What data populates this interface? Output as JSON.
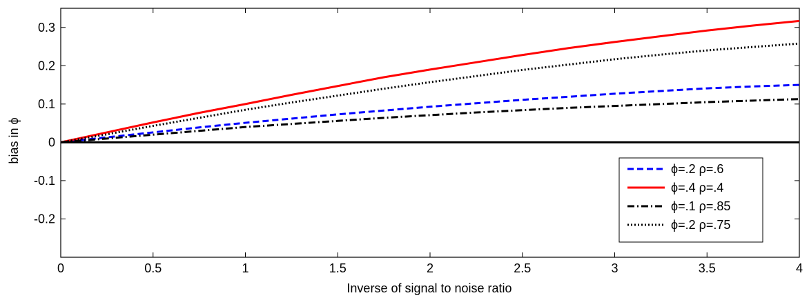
{
  "chart_data": {
    "type": "line",
    "xlabel": "Inverse of signal to noise ratio",
    "ylabel": "bias in ϕ",
    "xlim": [
      0,
      4
    ],
    "ylim": [
      -0.3,
      0.35
    ],
    "x_ticks": [
      0,
      0.5,
      1,
      1.5,
      2,
      2.5,
      3,
      3.5,
      4
    ],
    "x_tick_labels": [
      "0",
      "0.5",
      "1",
      "1.5",
      "2",
      "2.5",
      "3",
      "3.5",
      "4"
    ],
    "y_ticks": [
      -0.2,
      -0.1,
      0,
      0.1,
      0.2,
      0.3
    ],
    "y_tick_labels": [
      "-0.2",
      "-0.1",
      "0",
      "0.1",
      "0.2",
      "0.3"
    ],
    "grid": false,
    "legend_position": "bottom-right",
    "x": [
      0,
      0.25,
      0.5,
      0.75,
      1,
      1.25,
      1.5,
      1.75,
      2,
      2.25,
      2.5,
      2.75,
      3,
      3.25,
      3.5,
      3.75,
      4
    ],
    "series": [
      {
        "name": "ϕ=.2 ρ=.6",
        "color": "#0000ff",
        "dash": "dashed",
        "values": [
          0,
          0.013,
          0.026,
          0.039,
          0.051,
          0.062,
          0.073,
          0.083,
          0.093,
          0.102,
          0.111,
          0.119,
          0.127,
          0.134,
          0.141,
          0.146,
          0.15
        ]
      },
      {
        "name": "ϕ=.4 ρ=.4",
        "color": "#ff0000",
        "dash": "solid",
        "values": [
          0,
          0.026,
          0.052,
          0.077,
          0.1,
          0.124,
          0.147,
          0.17,
          0.19,
          0.209,
          0.228,
          0.246,
          0.262,
          0.277,
          0.292,
          0.305,
          0.317
        ]
      },
      {
        "name": "ϕ=.1 ρ=.85",
        "color": "#000000",
        "dash": "dashdot",
        "values": [
          0,
          0.01,
          0.02,
          0.03,
          0.04,
          0.048,
          0.056,
          0.064,
          0.071,
          0.078,
          0.084,
          0.09,
          0.095,
          0.1,
          0.105,
          0.109,
          0.113
        ]
      },
      {
        "name": "ϕ=.2 ρ=.75",
        "color": "#000000",
        "dash": "dotted",
        "values": [
          0,
          0.021,
          0.043,
          0.064,
          0.085,
          0.104,
          0.122,
          0.14,
          0.157,
          0.173,
          0.189,
          0.203,
          0.217,
          0.229,
          0.24,
          0.249,
          0.258
        ]
      },
      {
        "name": "",
        "color": "#000000",
        "dash": "solid",
        "values": [
          0,
          0,
          0,
          0,
          0,
          0,
          0,
          0,
          0,
          0,
          0,
          0,
          0,
          0,
          0,
          0,
          0
        ]
      }
    ]
  }
}
